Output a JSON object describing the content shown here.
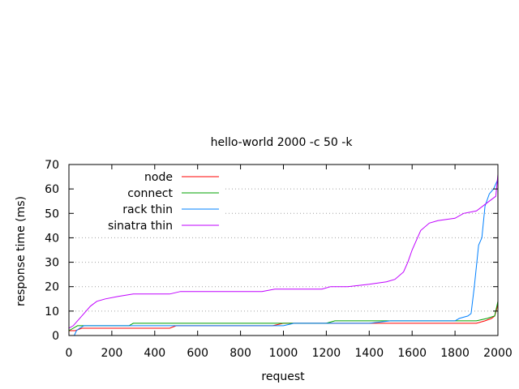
{
  "chart_data": {
    "type": "line",
    "title": "hello-world 2000 -c 50 -k",
    "xlabel": "request",
    "ylabel": "response time (ms)",
    "xlim": [
      0,
      2000
    ],
    "ylim": [
      0,
      70
    ],
    "x_ticks": [
      0,
      200,
      400,
      600,
      800,
      1000,
      1200,
      1400,
      1600,
      1800,
      2000
    ],
    "y_ticks": [
      0,
      10,
      20,
      30,
      40,
      50,
      60,
      70
    ],
    "grid": "horizontal dotted",
    "legend_position": "top-left",
    "series": [
      {
        "name": "node",
        "color": "#ff0000",
        "points": [
          [
            0,
            2
          ],
          [
            30,
            2
          ],
          [
            60,
            3
          ],
          [
            100,
            3
          ],
          [
            200,
            3
          ],
          [
            300,
            3
          ],
          [
            400,
            3
          ],
          [
            470,
            3
          ],
          [
            500,
            4
          ],
          [
            550,
            4
          ],
          [
            600,
            4
          ],
          [
            700,
            4
          ],
          [
            800,
            4
          ],
          [
            900,
            4
          ],
          [
            950,
            4
          ],
          [
            1000,
            5
          ],
          [
            1100,
            5
          ],
          [
            1200,
            5
          ],
          [
            1250,
            5
          ],
          [
            1300,
            5
          ],
          [
            1400,
            5
          ],
          [
            1500,
            5
          ],
          [
            1600,
            5
          ],
          [
            1700,
            5
          ],
          [
            1800,
            5
          ],
          [
            1880,
            5
          ],
          [
            1900,
            5
          ],
          [
            1940,
            6
          ],
          [
            1970,
            7
          ],
          [
            1985,
            8
          ],
          [
            1995,
            11
          ],
          [
            2000,
            14
          ]
        ]
      },
      {
        "name": "connect",
        "color": "#00a000",
        "points": [
          [
            0,
            2
          ],
          [
            20,
            3
          ],
          [
            40,
            4
          ],
          [
            100,
            4
          ],
          [
            200,
            4
          ],
          [
            280,
            4
          ],
          [
            300,
            5
          ],
          [
            400,
            5
          ],
          [
            480,
            5
          ],
          [
            500,
            5
          ],
          [
            600,
            5
          ],
          [
            700,
            5
          ],
          [
            800,
            5
          ],
          [
            900,
            5
          ],
          [
            1000,
            5
          ],
          [
            1100,
            5
          ],
          [
            1200,
            5
          ],
          [
            1240,
            6
          ],
          [
            1300,
            6
          ],
          [
            1400,
            6
          ],
          [
            1500,
            6
          ],
          [
            1600,
            6
          ],
          [
            1700,
            6
          ],
          [
            1800,
            6
          ],
          [
            1880,
            6
          ],
          [
            1900,
            6
          ],
          [
            1950,
            7
          ],
          [
            1985,
            8
          ],
          [
            2000,
            14
          ]
        ]
      },
      {
        "name": "rack thin",
        "color": "#0080ff",
        "points": [
          [
            25,
            0
          ],
          [
            35,
            2
          ],
          [
            50,
            3
          ],
          [
            70,
            4
          ],
          [
            200,
            4
          ],
          [
            400,
            4
          ],
          [
            500,
            4
          ],
          [
            600,
            4
          ],
          [
            800,
            4
          ],
          [
            1000,
            4
          ],
          [
            1050,
            5
          ],
          [
            1200,
            5
          ],
          [
            1300,
            5
          ],
          [
            1400,
            5
          ],
          [
            1500,
            6
          ],
          [
            1600,
            6
          ],
          [
            1700,
            6
          ],
          [
            1800,
            6
          ],
          [
            1820,
            7
          ],
          [
            1860,
            8
          ],
          [
            1875,
            9
          ],
          [
            1890,
            20
          ],
          [
            1910,
            37
          ],
          [
            1925,
            40
          ],
          [
            1940,
            53
          ],
          [
            1960,
            58
          ],
          [
            1980,
            60
          ],
          [
            2000,
            64
          ]
        ]
      },
      {
        "name": "sinatra thin",
        "color": "#c000ff",
        "points": [
          [
            0,
            3
          ],
          [
            20,
            4
          ],
          [
            50,
            7
          ],
          [
            70,
            9
          ],
          [
            100,
            12
          ],
          [
            130,
            14
          ],
          [
            170,
            15
          ],
          [
            230,
            16
          ],
          [
            300,
            17
          ],
          [
            400,
            17
          ],
          [
            470,
            17
          ],
          [
            520,
            18
          ],
          [
            700,
            18
          ],
          [
            900,
            18
          ],
          [
            960,
            19
          ],
          [
            1100,
            19
          ],
          [
            1180,
            19
          ],
          [
            1220,
            20
          ],
          [
            1300,
            20
          ],
          [
            1400,
            21
          ],
          [
            1480,
            22
          ],
          [
            1520,
            23
          ],
          [
            1560,
            26
          ],
          [
            1580,
            30
          ],
          [
            1600,
            35
          ],
          [
            1620,
            39
          ],
          [
            1640,
            43
          ],
          [
            1680,
            46
          ],
          [
            1720,
            47
          ],
          [
            1800,
            48
          ],
          [
            1840,
            50
          ],
          [
            1900,
            51
          ],
          [
            1930,
            53
          ],
          [
            1960,
            55
          ],
          [
            1990,
            57
          ],
          [
            2000,
            66
          ]
        ]
      }
    ]
  }
}
